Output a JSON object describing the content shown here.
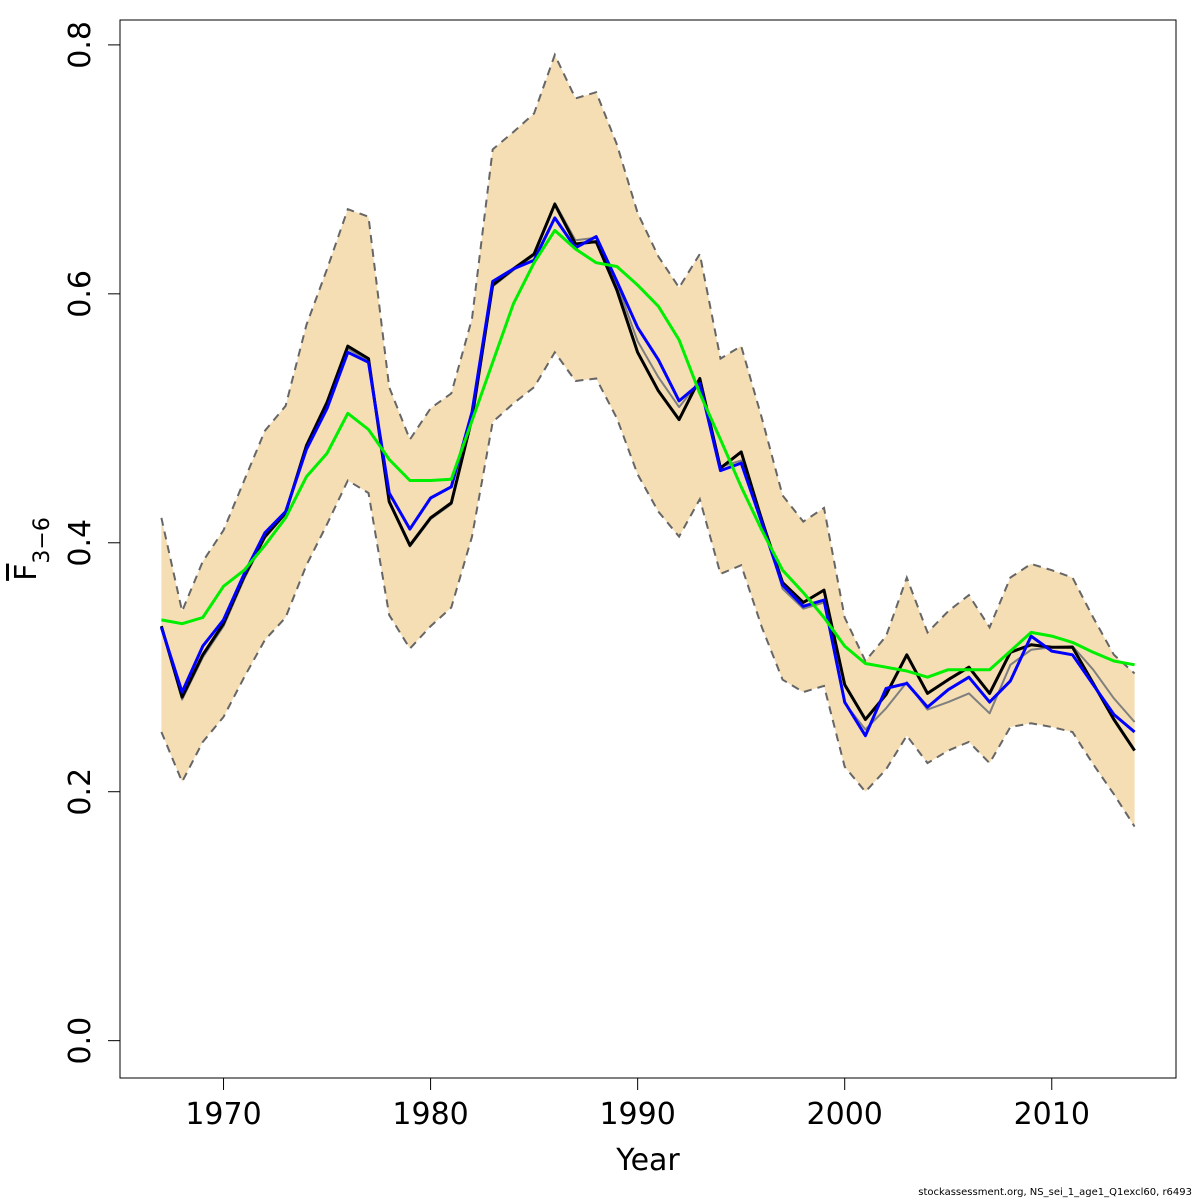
{
  "chart_data": {
    "type": "line",
    "xlabel": "Year",
    "ylabel": {
      "main": "F",
      "sub": "3−6"
    },
    "xlim": [
      1965,
      2016
    ],
    "ylim": [
      -0.03,
      0.82
    ],
    "xticks": [
      1970,
      1980,
      1990,
      2000,
      2010
    ],
    "yticks": [
      0.0,
      0.2,
      0.4,
      0.6,
      0.8
    ],
    "ytick_labels": [
      "0.0",
      "0.2",
      "0.4",
      "0.6",
      "0.8"
    ],
    "grid": false,
    "colors": {
      "band": "#f5deb3",
      "ci": "#666666",
      "black": "#000000",
      "gray": "#7f7f7f",
      "blue": "#0000ff",
      "green": "#00ee00"
    },
    "x": [
      1967,
      1968,
      1969,
      1970,
      1971,
      1972,
      1973,
      1974,
      1975,
      1976,
      1977,
      1978,
      1979,
      1980,
      1981,
      1982,
      1983,
      1984,
      1985,
      1986,
      1987,
      1988,
      1989,
      1990,
      1991,
      1992,
      1993,
      1994,
      1995,
      1996,
      1997,
      1998,
      1999,
      2000,
      2001,
      2002,
      2003,
      2004,
      2005,
      2006,
      2007,
      2008,
      2009,
      2010,
      2011,
      2012,
      2013,
      2014
    ],
    "band": {
      "upper": [
        0.42,
        0.345,
        0.385,
        0.41,
        0.45,
        0.49,
        0.51,
        0.575,
        0.62,
        0.668,
        0.662,
        0.525,
        0.483,
        0.508,
        0.52,
        0.58,
        0.716,
        0.73,
        0.745,
        0.792,
        0.757,
        0.762,
        0.72,
        0.665,
        0.63,
        0.605,
        0.632,
        0.548,
        0.558,
        0.5,
        0.438,
        0.417,
        0.428,
        0.34,
        0.305,
        0.325,
        0.372,
        0.328,
        0.345,
        0.358,
        0.332,
        0.372,
        0.383,
        0.378,
        0.372,
        0.34,
        0.31,
        0.295
      ],
      "lower": [
        0.248,
        0.208,
        0.24,
        0.26,
        0.292,
        0.322,
        0.34,
        0.382,
        0.415,
        0.45,
        0.44,
        0.342,
        0.315,
        0.333,
        0.348,
        0.405,
        0.497,
        0.512,
        0.525,
        0.553,
        0.53,
        0.532,
        0.5,
        0.455,
        0.425,
        0.405,
        0.435,
        0.375,
        0.382,
        0.332,
        0.29,
        0.28,
        0.285,
        0.22,
        0.2,
        0.218,
        0.245,
        0.223,
        0.233,
        0.24,
        0.223,
        0.252,
        0.255,
        0.252,
        0.248,
        0.222,
        0.198,
        0.172
      ]
    },
    "series": [
      {
        "color": "black",
        "values": [
          0.333,
          0.276,
          0.31,
          0.335,
          0.373,
          0.405,
          0.424,
          0.478,
          0.513,
          0.558,
          0.548,
          0.433,
          0.398,
          0.42,
          0.432,
          0.5,
          0.607,
          0.62,
          0.632,
          0.672,
          0.64,
          0.642,
          0.603,
          0.553,
          0.522,
          0.499,
          0.532,
          0.46,
          0.473,
          0.418,
          0.368,
          0.352,
          0.362,
          0.286,
          0.258,
          0.278,
          0.31,
          0.279,
          0.29,
          0.3,
          0.279,
          0.312,
          0.318,
          0.316,
          0.316,
          0.287,
          0.258,
          0.233
        ]
      },
      {
        "color": "gray",
        "values": [
          0.333,
          0.274,
          0.308,
          0.333,
          0.371,
          0.404,
          0.423,
          0.477,
          0.512,
          0.556,
          0.546,
          0.433,
          0.397,
          0.419,
          0.431,
          0.499,
          0.606,
          0.619,
          0.631,
          0.673,
          0.643,
          0.645,
          0.608,
          0.562,
          0.533,
          0.509,
          0.53,
          0.461,
          0.466,
          0.42,
          0.363,
          0.347,
          0.352,
          0.271,
          0.25,
          0.267,
          0.288,
          0.266,
          0.272,
          0.279,
          0.263,
          0.302,
          0.314,
          0.316,
          0.317,
          0.298,
          0.275,
          0.256
        ]
      },
      {
        "color": "blue",
        "values": [
          0.332,
          0.28,
          0.317,
          0.338,
          0.375,
          0.408,
          0.425,
          0.475,
          0.508,
          0.553,
          0.545,
          0.44,
          0.411,
          0.436,
          0.445,
          0.505,
          0.61,
          0.62,
          0.627,
          0.661,
          0.637,
          0.646,
          0.61,
          0.573,
          0.547,
          0.514,
          0.528,
          0.458,
          0.464,
          0.416,
          0.366,
          0.349,
          0.354,
          0.272,
          0.245,
          0.283,
          0.287,
          0.268,
          0.282,
          0.292,
          0.272,
          0.289,
          0.325,
          0.313,
          0.31,
          0.286,
          0.262,
          0.248
        ]
      },
      {
        "color": "green",
        "values": [
          0.338,
          0.335,
          0.34,
          0.365,
          0.378,
          0.398,
          0.42,
          0.453,
          0.472,
          0.504,
          0.491,
          0.467,
          0.45,
          0.45,
          0.451,
          0.498,
          0.545,
          0.592,
          0.625,
          0.651,
          0.636,
          0.625,
          0.622,
          0.607,
          0.59,
          0.563,
          0.52,
          0.483,
          0.445,
          0.41,
          0.378,
          0.36,
          0.34,
          0.317,
          0.303,
          0.3,
          0.297,
          0.292,
          0.298,
          0.298,
          0.298,
          0.313,
          0.328,
          0.325,
          0.32,
          0.312,
          0.305,
          0.302
        ]
      }
    ]
  },
  "footer": "stockassessment.org, NS_sei_1_age1_Q1excl60, r6493"
}
